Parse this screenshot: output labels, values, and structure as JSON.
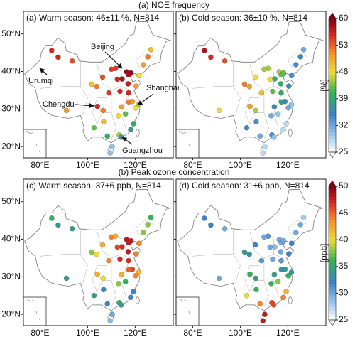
{
  "titles": [
    "(a) NOE frequency",
    "(b) Peak ozone concentration"
  ],
  "map": {
    "type": "scatter",
    "xlim": [
      73,
      136
    ],
    "ylim": [
      17,
      56
    ],
    "xticks": [
      {
        "value": 80,
        "label": "80°E"
      },
      {
        "value": 100,
        "label": "100°E"
      },
      {
        "value": 120,
        "label": "120°E"
      }
    ],
    "yticks": [
      {
        "value": 20,
        "label": "20°N"
      },
      {
        "value": 30,
        "label": "30°N"
      },
      {
        "value": 40,
        "label": "40°N"
      },
      {
        "value": 50,
        "label": "50°N"
      }
    ]
  },
  "stations": {
    "lon": [
      87.6,
      116.4,
      117.2,
      114.5,
      112.5,
      117.0,
      120.4,
      113.6,
      108.9,
      103.8,
      101.8,
      106.3,
      111.7,
      123.4,
      125.3,
      126.6,
      121.6,
      118.8,
      121.5,
      120.2,
      117.3,
      114.3,
      113.0,
      115.9,
      119.3,
      118.1,
      113.3,
      114.1,
      108.3,
      110.3,
      102.7,
      106.7,
      106.5,
      104.1,
      91.1,
      93.5,
      84.9,
      110.0,
      118.2,
      117.2,
      109.5
    ],
    "lat": [
      43.8,
      39.9,
      39.1,
      38.0,
      37.9,
      36.7,
      36.1,
      34.7,
      34.3,
      36.0,
      36.6,
      38.5,
      40.8,
      41.8,
      43.9,
      45.8,
      38.9,
      32.0,
      31.2,
      30.3,
      31.9,
      30.6,
      28.2,
      28.7,
      26.1,
      24.5,
      23.1,
      22.5,
      22.8,
      20.0,
      25.0,
      26.6,
      29.6,
      30.7,
      29.6,
      42.8,
      45.6,
      40.6,
      39.6,
      34.3,
      18.3
    ]
  },
  "cities": [
    "Beijing",
    "Urumqi",
    "Chengdu",
    "Shanghai",
    "Guangzhou"
  ],
  "panels": [
    {
      "title": "(a) Warm season: 46±11 %, N=814",
      "colorbar": 0,
      "values": [
        56,
        59,
        58,
        58,
        56,
        57,
        50,
        56,
        55,
        52,
        48,
        54,
        55,
        50,
        52,
        48,
        46,
        50,
        44,
        46,
        52,
        50,
        46,
        42,
        40,
        38,
        44,
        36,
        40,
        30,
        42,
        48,
        52,
        56,
        50,
        54,
        56,
        55,
        59,
        56,
        30
      ]
    },
    {
      "title": "(b) Cold season: 36±10 %, N=814",
      "colorbar": 0,
      "values": [
        56,
        44,
        42,
        40,
        46,
        40,
        36,
        42,
        48,
        50,
        52,
        46,
        44,
        34,
        36,
        32,
        34,
        36,
        30,
        32,
        38,
        36,
        32,
        30,
        28,
        28,
        34,
        30,
        32,
        28,
        36,
        34,
        44,
        50,
        46,
        54,
        58,
        44,
        42,
        40,
        28
      ]
    },
    {
      "title": "(c) Warm season: 37±6 ppb,  N=814",
      "colorbar": 1,
      "values": [
        34,
        48,
        48,
        47,
        46,
        48,
        44,
        47,
        44,
        40,
        38,
        42,
        42,
        38,
        38,
        36,
        44,
        46,
        42,
        44,
        45,
        42,
        38,
        36,
        32,
        32,
        36,
        34,
        32,
        30,
        34,
        32,
        40,
        42,
        34,
        34,
        36,
        44,
        48,
        47,
        29
      ]
    },
    {
      "title": "(d) Cold season: 31±6 ppb,  N=814",
      "colorbar": 1,
      "values": [
        32,
        30,
        30,
        29,
        30,
        30,
        32,
        30,
        31,
        33,
        34,
        32,
        31,
        30,
        30,
        28,
        32,
        34,
        34,
        36,
        33,
        34,
        36,
        38,
        42,
        44,
        46,
        46,
        44,
        48,
        40,
        36,
        34,
        36,
        30,
        30,
        32,
        30,
        30,
        31,
        48
      ]
    }
  ],
  "colorbars": [
    {
      "label": "[%]",
      "lim": [
        25,
        60
      ],
      "ticks": [
        25,
        32,
        39,
        46,
        53,
        60
      ]
    },
    {
      "label": "[ppb]",
      "lim": [
        25,
        50
      ],
      "ticks": [
        25,
        30,
        35,
        40,
        45,
        50
      ]
    }
  ]
}
